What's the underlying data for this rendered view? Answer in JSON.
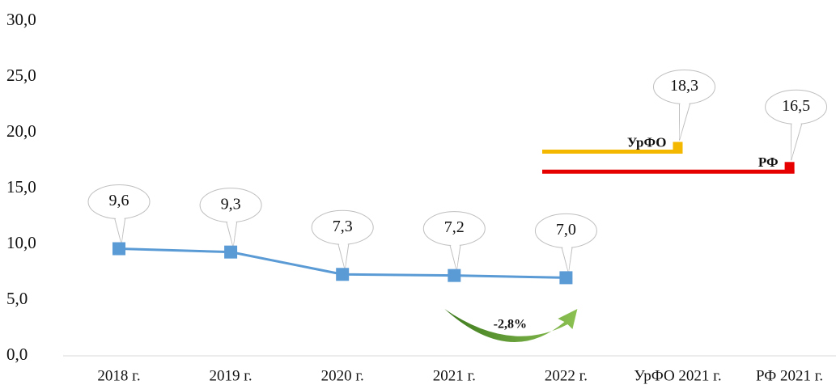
{
  "chart_data": {
    "type": "line",
    "categories": [
      "2018 г.",
      "2019 г.",
      "2020 г.",
      "2021 г.",
      "2022 г.",
      "УрФО 2021 г.",
      "РФ 2021 г."
    ],
    "series": [
      {
        "color": "#5b9bd5",
        "values": [
          9.6,
          9.3,
          7.3,
          7.2,
          7.0,
          null,
          null
        ],
        "value_labels": [
          "9,6",
          "9,3",
          "7,3",
          "7,2",
          "7,0",
          null,
          null
        ]
      }
    ],
    "reference_lines": [
      {
        "label": "УрФО",
        "value": 18.3,
        "value_label": "18,3",
        "color": "#f5b800"
      },
      {
        "label": "РФ",
        "value": 16.5,
        "value_label": "16,5",
        "color": "#e60000"
      }
    ],
    "annotation": "-2,8%",
    "ylim": [
      0,
      30
    ],
    "yticks": [
      {
        "value": 0,
        "label": "0,0"
      },
      {
        "value": 5,
        "label": "5,0"
      },
      {
        "value": 10,
        "label": "10,0"
      },
      {
        "value": 15,
        "label": "15,0"
      },
      {
        "value": 20,
        "label": "20,0"
      },
      {
        "value": 25,
        "label": "25,0"
      },
      {
        "value": 30,
        "label": "30,0"
      }
    ]
  }
}
